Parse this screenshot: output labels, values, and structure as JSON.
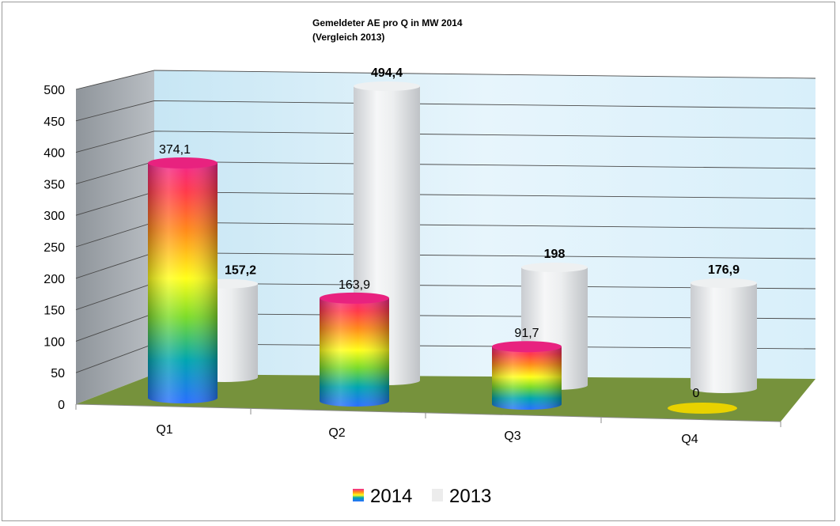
{
  "chart_data": {
    "type": "bar",
    "title": "Gemeldeter AE  pro Q in MW 2014",
    "subtitle": "(Vergleich 2013)",
    "categories": [
      "Q1",
      "Q2",
      "Q3",
      "Q4"
    ],
    "series": [
      {
        "name": "2014",
        "values": [
          374.1,
          163.9,
          91.7,
          0
        ],
        "labels": [
          "374,1",
          "163,9",
          "91,7",
          "0"
        ]
      },
      {
        "name": "2013",
        "values": [
          157.2,
          494.4,
          198,
          176.9
        ],
        "labels": [
          "157,2",
          "494,4",
          "198",
          "176,9"
        ]
      }
    ],
    "ylim": [
      0,
      500
    ],
    "yticks": [
      0,
      50,
      100,
      150,
      200,
      250,
      300,
      350,
      400,
      450,
      500
    ],
    "grid": true,
    "legend_position": "bottom",
    "colors": {
      "wall": "#e6f4fb",
      "side_wall": "#a7acb1",
      "floor": "#76923c",
      "series_2013": "#e6e8ea",
      "zero_marker": "#e8d200"
    }
  }
}
